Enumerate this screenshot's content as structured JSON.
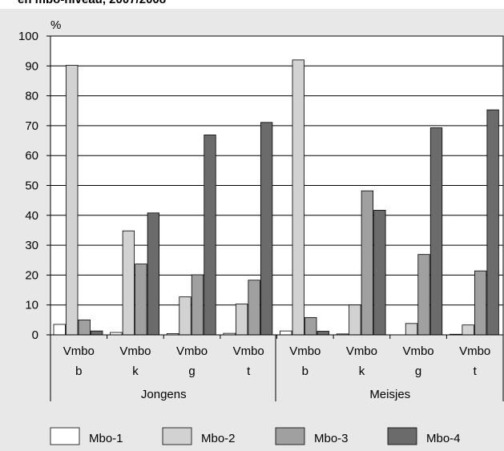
{
  "title_fragment": "en mbo-niveau, 2007/2008",
  "chart_data": {
    "type": "bar",
    "ylabel": "%",
    "ylim": [
      0,
      100
    ],
    "yticks": [
      0,
      10,
      20,
      30,
      40,
      50,
      60,
      70,
      80,
      90,
      100
    ],
    "grid": true,
    "legend_position": "bottom",
    "categories": [
      {
        "line1": "Vmbo",
        "line2": "b"
      },
      {
        "line1": "Vmbo",
        "line2": "k"
      },
      {
        "line1": "Vmbo",
        "line2": "g"
      },
      {
        "line1": "Vmbo",
        "line2": "t"
      },
      {
        "line1": "Vmbo",
        "line2": "b"
      },
      {
        "line1": "Vmbo",
        "line2": "k"
      },
      {
        "line1": "Vmbo",
        "line2": "g"
      },
      {
        "line1": "Vmbo",
        "line2": "t"
      }
    ],
    "groups": [
      {
        "label": "Jongens",
        "categories": [
          0,
          1,
          2,
          3
        ]
      },
      {
        "label": "Meisjes",
        "categories": [
          4,
          5,
          6,
          7
        ]
      }
    ],
    "series": [
      {
        "name": "Mbo-1",
        "color": "#ffffff",
        "values": [
          3.5,
          0.8,
          0.4,
          0.5,
          1.3,
          0.3,
          0,
          0.2
        ]
      },
      {
        "name": "Mbo-2",
        "color": "#d2d2d2",
        "values": [
          90.2,
          34.8,
          12.7,
          10.3,
          92,
          10,
          3.8,
          3.3
        ]
      },
      {
        "name": "Mbo-3",
        "color": "#a0a0a0",
        "values": [
          5,
          23.7,
          20.1,
          18.3,
          5.8,
          48.2,
          26.9,
          21.4
        ]
      },
      {
        "name": "Mbo-4",
        "color": "#6b6b6b",
        "values": [
          1.3,
          40.8,
          66.9,
          71.1,
          1.2,
          41.7,
          69.3,
          75.3
        ]
      }
    ]
  }
}
